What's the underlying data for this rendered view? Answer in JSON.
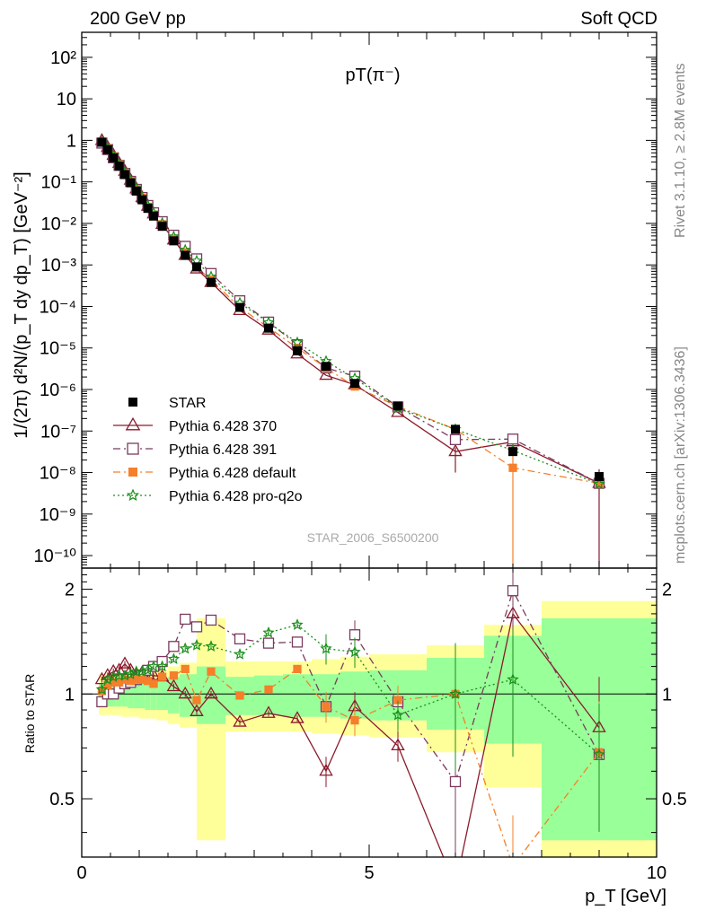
{
  "header": {
    "left": "200 GeV pp",
    "right": "Soft QCD",
    "side_top": "Rivet 3.1.10, ≥ 2.8M events",
    "side_bottom": "mcplots.cern.ch [arXiv:1306.3436]",
    "watermark": "STAR_2006_S6500200"
  },
  "chart_data": [
    {
      "type": "line",
      "title": "pT(π⁻)",
      "ylabel": "1/(2π) d²N/(p_T dy dp_T) [GeV⁻²]",
      "yscale": "log",
      "xlim": [
        0,
        10
      ],
      "ylim": [
        5e-11,
        400
      ],
      "ytick_labels": [
        "10⁻¹⁰",
        "10⁻⁹",
        "10⁻⁸",
        "10⁻⁷",
        "10⁻⁶",
        "10⁻⁵",
        "10⁻⁴",
        "10⁻³",
        "10⁻²",
        "10⁻¹",
        "1",
        "10",
        "10²"
      ],
      "x": [
        0.35,
        0.45,
        0.55,
        0.65,
        0.75,
        0.85,
        0.95,
        1.05,
        1.15,
        1.25,
        1.4,
        1.6,
        1.8,
        2.0,
        2.25,
        2.75,
        3.25,
        3.75,
        4.25,
        4.75,
        5.5,
        6.5,
        7.5,
        9.0
      ],
      "series": [
        {
          "name": "STAR",
          "color": "#000000",
          "marker": "square-filled",
          "values": [
            0.9,
            0.6,
            0.38,
            0.24,
            0.15,
            0.095,
            0.06,
            0.037,
            0.023,
            0.015,
            0.0085,
            0.0038,
            0.0017,
            0.0009,
            0.00038,
            9.5e-05,
            3e-05,
            8.5e-06,
            3.6e-06,
            1.4e-06,
            4e-07,
            1.1e-07,
            3.2e-08,
            8e-09
          ]
        },
        {
          "name": "Pythia 6.428 370",
          "color": "#8b1a2b",
          "marker": "triangle-open",
          "values": [
            0.99,
            0.68,
            0.44,
            0.28,
            0.18,
            0.11,
            0.068,
            0.042,
            0.026,
            0.017,
            0.0095,
            0.004,
            0.0017,
            0.0008,
            0.00038,
            8e-05,
            2.7e-05,
            7.2e-06,
            2.2e-06,
            1.3e-06,
            2.8e-07,
            3.2e-08,
            5.5e-08,
            5.5e-09
          ]
        },
        {
          "name": "Pythia 6.428 391",
          "color": "#7a3b5e",
          "marker": "square-open",
          "values": [
            0.86,
            0.6,
            0.38,
            0.25,
            0.16,
            0.103,
            0.066,
            0.042,
            0.027,
            0.018,
            0.011,
            0.0052,
            0.0028,
            0.0014,
            0.00062,
            0.000137,
            4.2e-05,
            1.2e-05,
            3.3e-06,
            2.1e-06,
            3.8e-07,
            6.2e-08,
            6.4e-08,
            5.5e-09
          ]
        },
        {
          "name": "Pythia 6.428 default",
          "color": "#f57f2a",
          "marker": "square-filled",
          "values": [
            0.92,
            0.64,
            0.41,
            0.26,
            0.165,
            0.104,
            0.066,
            0.041,
            0.025,
            0.016,
            0.0095,
            0.0043,
            0.002,
            0.00087,
            0.00044,
            9.4e-05,
            3.1e-05,
            1e-05,
            3.3e-06,
            1.18e-06,
            3.9e-07,
            1.1e-07,
            1.3e-08,
            5.5e-09
          ]
        },
        {
          "name": "Pythia 6.428 pro-q2o",
          "color": "#1a8f1a",
          "marker": "star",
          "values": [
            0.93,
            0.66,
            0.43,
            0.27,
            0.17,
            0.108,
            0.07,
            0.043,
            0.027,
            0.018,
            0.0102,
            0.0048,
            0.0023,
            0.00125,
            0.00052,
            0.000122,
            4.1e-05,
            1.35e-05,
            4.8e-06,
            1.85e-06,
            3.6e-07,
            1.1e-07,
            3.4e-08,
            5.3e-09
          ]
        }
      ],
      "legend_location": "lower-left"
    },
    {
      "type": "line",
      "ylabel": "Ratio to STAR",
      "xlabel": "p_T [GeV]",
      "xlim": [
        0,
        10
      ],
      "ylim": [
        0.34,
        2.3
      ],
      "ytick_labels": [
        "0.5",
        "1",
        "2"
      ],
      "xtick_labels": [
        "0",
        "5",
        "10"
      ],
      "x": [
        0.35,
        0.45,
        0.55,
        0.65,
        0.75,
        0.85,
        0.95,
        1.05,
        1.15,
        1.25,
        1.4,
        1.6,
        1.8,
        2.0,
        2.25,
        2.75,
        3.25,
        3.75,
        4.25,
        4.75,
        5.5,
        6.5,
        7.5,
        9.0
      ],
      "band_edges": [
        0.3,
        0.4,
        0.5,
        0.6,
        0.7,
        0.8,
        0.9,
        1.0,
        1.1,
        1.2,
        1.3,
        1.5,
        1.7,
        1.9,
        2.0,
        2.5,
        3.0,
        3.5,
        4.0,
        4.5,
        5.0,
        6.0,
        7.0,
        8.0,
        10.0
      ],
      "band_green": [
        [
          0.93,
          1.07
        ],
        [
          0.92,
          1.08
        ],
        [
          0.92,
          1.08
        ],
        [
          0.92,
          1.08
        ],
        [
          0.92,
          1.08
        ],
        [
          0.91,
          1.09
        ],
        [
          0.91,
          1.09
        ],
        [
          0.91,
          1.09
        ],
        [
          0.9,
          1.1
        ],
        [
          0.9,
          1.1
        ],
        [
          0.9,
          1.1
        ],
        [
          0.88,
          1.12
        ],
        [
          0.86,
          1.14
        ],
        [
          0.86,
          1.14
        ],
        [
          0.82,
          1.2
        ],
        [
          0.87,
          1.12
        ],
        [
          0.87,
          1.13
        ],
        [
          0.86,
          1.14
        ],
        [
          0.86,
          1.14
        ],
        [
          0.85,
          1.16
        ],
        [
          0.84,
          1.17
        ],
        [
          0.79,
          1.27
        ],
        [
          0.72,
          1.47
        ],
        [
          0.38,
          1.65
        ],
        [
          0.38,
          1.7
        ]
      ],
      "band_yellow": [
        [
          0.87,
          1.14
        ],
        [
          0.87,
          1.14
        ],
        [
          0.87,
          1.14
        ],
        [
          0.87,
          1.14
        ],
        [
          0.86,
          1.15
        ],
        [
          0.86,
          1.15
        ],
        [
          0.86,
          1.15
        ],
        [
          0.85,
          1.16
        ],
        [
          0.85,
          1.16
        ],
        [
          0.85,
          1.16
        ],
        [
          0.84,
          1.17
        ],
        [
          0.82,
          1.2
        ],
        [
          0.8,
          1.23
        ],
        [
          0.8,
          1.23
        ],
        [
          0.38,
          1.65
        ],
        [
          0.78,
          1.24
        ],
        [
          0.78,
          1.24
        ],
        [
          0.78,
          1.24
        ],
        [
          0.77,
          1.26
        ],
        [
          0.76,
          1.28
        ],
        [
          0.75,
          1.3
        ],
        [
          0.68,
          1.38
        ],
        [
          0.54,
          1.58
        ],
        [
          0.34,
          1.85
        ],
        [
          0.34,
          2.1
        ]
      ],
      "series": [
        {
          "name": "Pythia 6.428 370",
          "values": [
            1.1,
            1.13,
            1.16,
            1.17,
            1.22,
            1.17,
            1.13,
            1.15,
            1.14,
            1.13,
            1.12,
            1.05,
            1.0,
            0.89,
            1.0,
            0.83,
            0.88,
            0.85,
            0.6,
            0.92,
            0.71,
            0.28,
            1.7,
            0.8
          ]
        },
        {
          "name": "Pythia 6.428 391",
          "values": [
            0.95,
            1.0,
            1.0,
            1.04,
            1.07,
            1.08,
            1.1,
            1.13,
            1.17,
            1.2,
            1.24,
            1.37,
            1.64,
            1.56,
            1.63,
            1.44,
            1.4,
            1.41,
            0.92,
            1.48,
            0.95,
            0.56,
            1.98,
            0.67
          ]
        },
        {
          "name": "Pythia 6.428 default",
          "values": [
            1.02,
            1.06,
            1.08,
            1.08,
            1.1,
            1.09,
            1.1,
            1.1,
            1.09,
            1.07,
            1.12,
            1.13,
            1.18,
            0.96,
            1.16,
            0.99,
            1.03,
            1.18,
            0.92,
            0.84,
            0.96,
            1.0,
            0.32,
            0.68
          ]
        },
        {
          "name": "Pythia 6.428 pro-q2o",
          "values": [
            1.03,
            1.1,
            1.12,
            1.13,
            1.13,
            1.14,
            1.16,
            1.16,
            1.17,
            1.2,
            1.2,
            1.26,
            1.35,
            1.38,
            1.37,
            1.3,
            1.5,
            1.58,
            1.35,
            1.32,
            0.87,
            1.0,
            1.1,
            0.67
          ]
        }
      ]
    }
  ]
}
